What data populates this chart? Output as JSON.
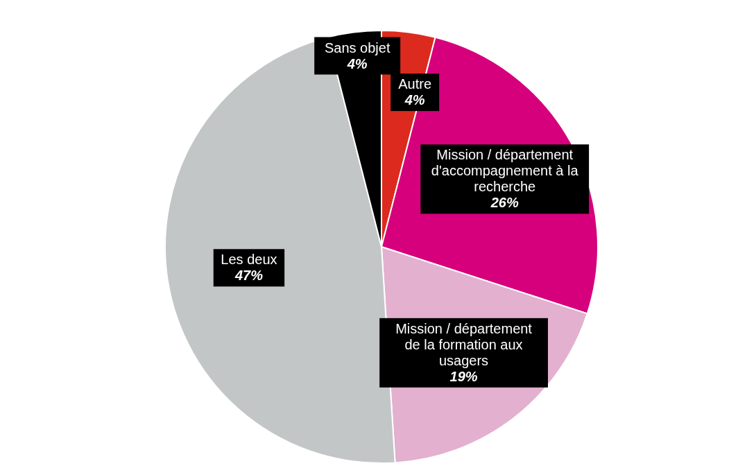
{
  "chart_data": {
    "type": "pie",
    "categories": [
      "Autre",
      "Mission / département d'accompagnement à la recherche",
      "Mission / département de la formation aux usagers",
      "Les deux",
      "Sans objet"
    ],
    "values": [
      4,
      26,
      19,
      47,
      4
    ],
    "value_labels": [
      "4%",
      "26%",
      "19%",
      "47%",
      "4%"
    ],
    "colors": [
      "#dc2b1e",
      "#d6007d",
      "#e3b0cf",
      "#c2c6c7",
      "#000000"
    ]
  }
}
